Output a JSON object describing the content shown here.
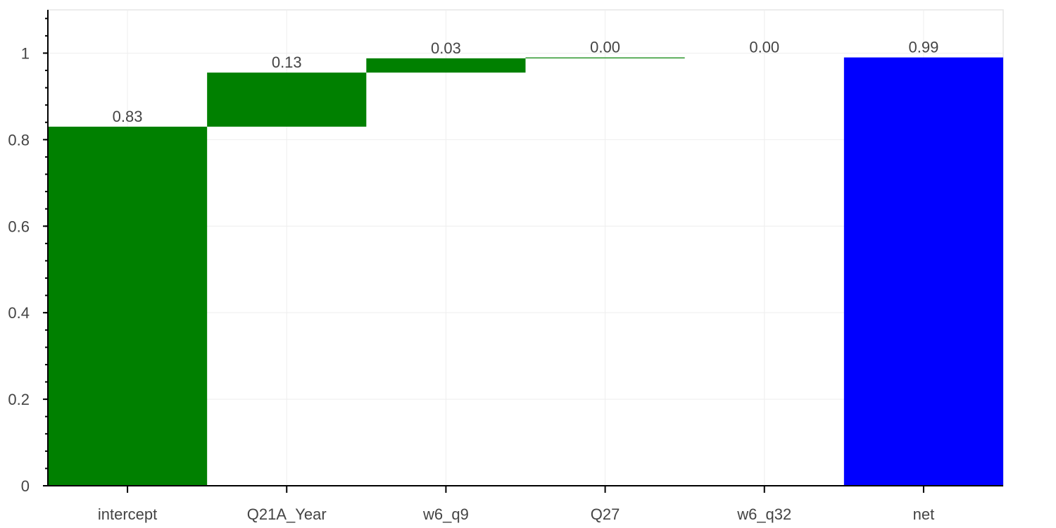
{
  "chart_data": {
    "type": "waterfall",
    "categories": [
      "intercept",
      "Q21A_Year",
      "w6_q9",
      "Q27",
      "w6_q32",
      "net"
    ],
    "contributions": [
      0.83,
      0.125,
      0.033,
      0.002,
      0.0,
      0.99
    ],
    "labels": [
      "0.83",
      "0.13",
      "0.03",
      "0.00",
      "0.00",
      "0.99"
    ],
    "is_total": [
      false,
      false,
      false,
      false,
      false,
      true
    ],
    "ylim": [
      0,
      1.1
    ],
    "yticks": [
      0,
      0.2,
      0.4,
      0.6,
      0.8,
      1
    ],
    "ytick_labels": [
      "0",
      "0.2",
      "0.4",
      "0.6",
      "0.8",
      "1"
    ],
    "grid": true,
    "colors": {
      "positive": "#008000",
      "total": "#0000ff"
    }
  }
}
